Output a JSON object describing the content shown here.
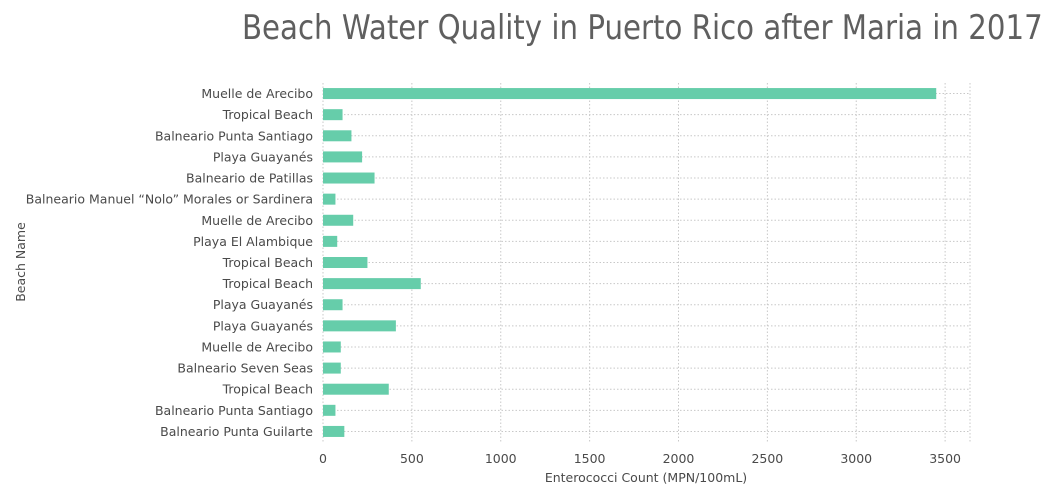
{
  "chart_data": {
    "type": "bar",
    "orientation": "horizontal",
    "title": "Beach Water Quality in Puerto Rico after Maria in 2017",
    "xlabel": "Enterococci Count (MPN/100mL)",
    "ylabel": "Beach Name",
    "xlim": [
      0,
      3640
    ],
    "xticks": [
      0,
      500,
      1000,
      1500,
      2000,
      2500,
      3000,
      3500
    ],
    "grid": true,
    "bar_color": "#66cdaa",
    "categories": [
      "Muelle de Arecibo",
      "Tropical Beach",
      "Balneario Punta Santiago",
      "Playa Guayanés",
      "Balneario de Patillas",
      "Balneario Manuel “Nolo” Morales or Sardinera",
      "Muelle de Arecibo",
      "Playa El Alambique",
      "Tropical Beach",
      "Tropical Beach",
      "Playa Guayanés ",
      "Playa Guayanés",
      "Muelle de Arecibo",
      "Balneario Seven Seas",
      "Tropical Beach",
      "Balneario Punta Santiago",
      "Balneario Punta Guilarte"
    ],
    "values": [
      3450,
      110,
      160,
      220,
      290,
      70,
      170,
      80,
      250,
      550,
      110,
      410,
      100,
      100,
      370,
      70,
      120
    ]
  }
}
